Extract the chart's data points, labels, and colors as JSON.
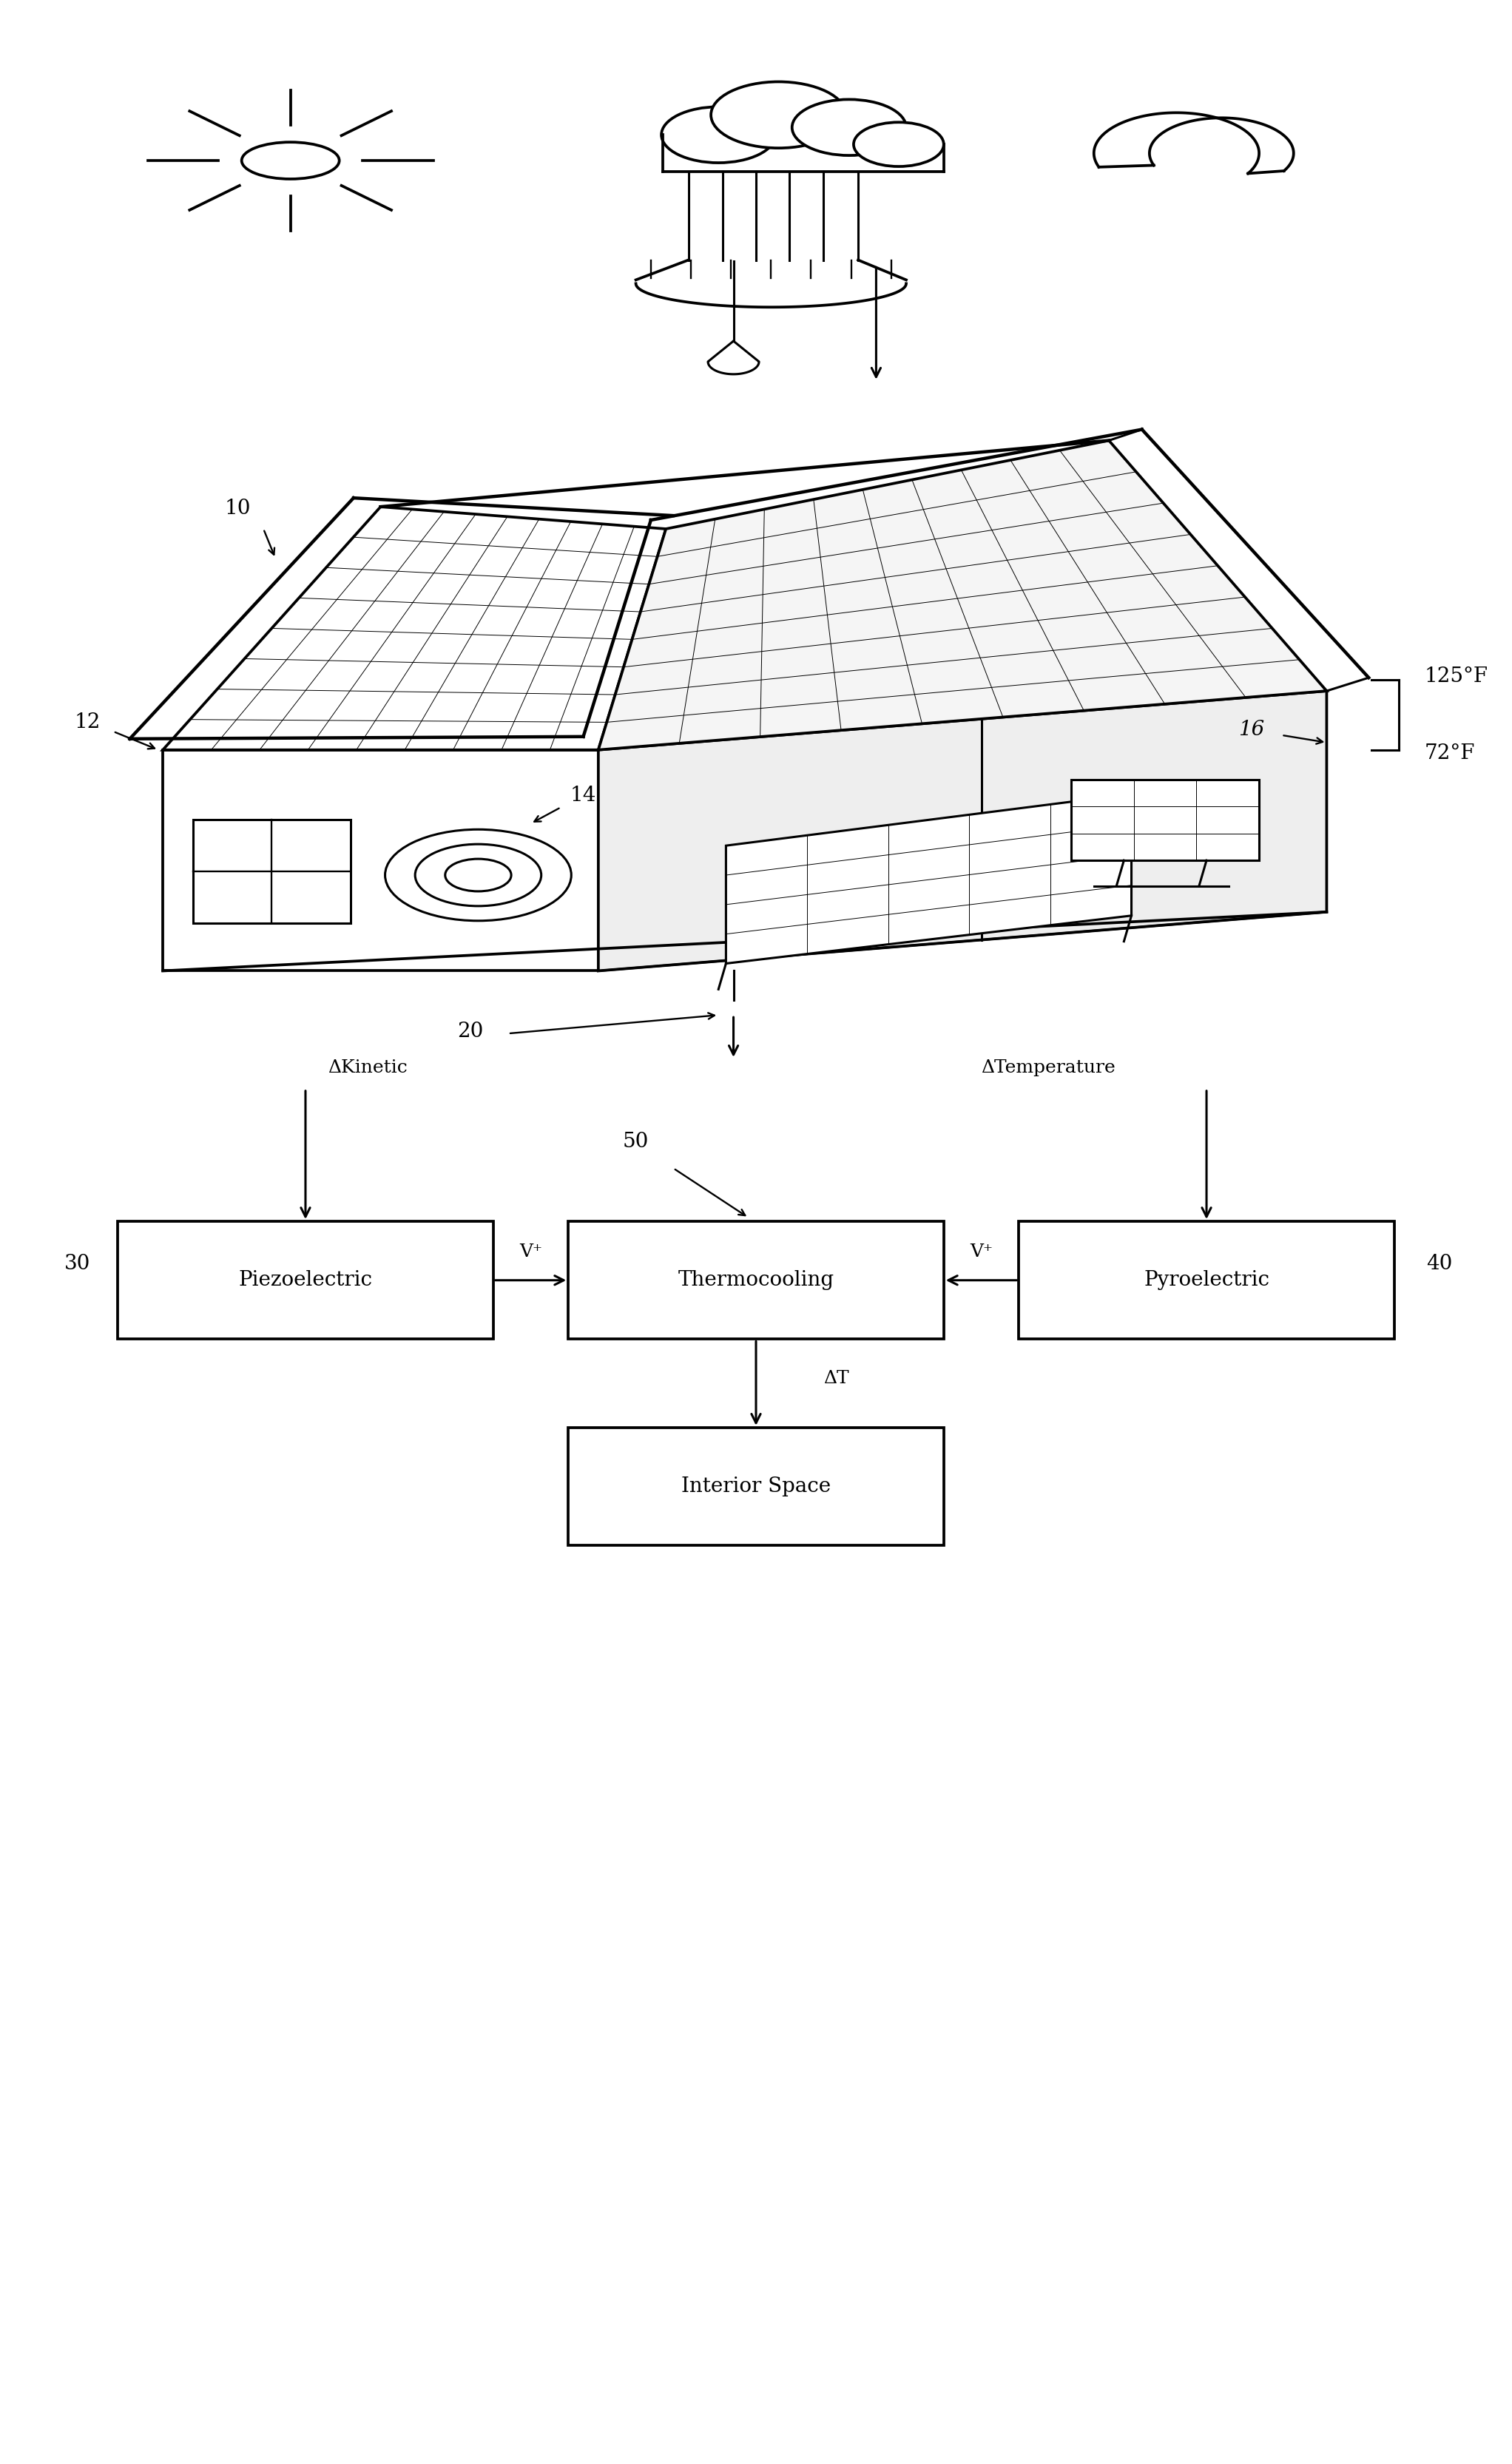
{
  "bg_color": "#ffffff",
  "line_color": "#000000",
  "line_width": 2.2,
  "fig_width": 20.44,
  "fig_height": 33.31,
  "labels": {
    "ref_10": "10",
    "ref_12": "12",
    "ref_14": "14",
    "ref_16": "16",
    "ref_20": "20",
    "ref_30": "30",
    "ref_40": "40",
    "ref_50": "50",
    "temp_high": "125°F",
    "temp_low": "72°F",
    "delta_kinetic": "ΔKinetic",
    "delta_temperature": "ΔTemperature",
    "delta_T": "ΔT",
    "box_piezo": "Piezoelectric",
    "box_thermo": "Thermocooling",
    "box_pyro": "Pyroelectric",
    "box_interior": "Interior Space",
    "vplus_left": "V⁺",
    "vplus_right": "V⁺"
  },
  "font_size_labels": 20,
  "font_size_box": 20,
  "font_size_ref": 20
}
